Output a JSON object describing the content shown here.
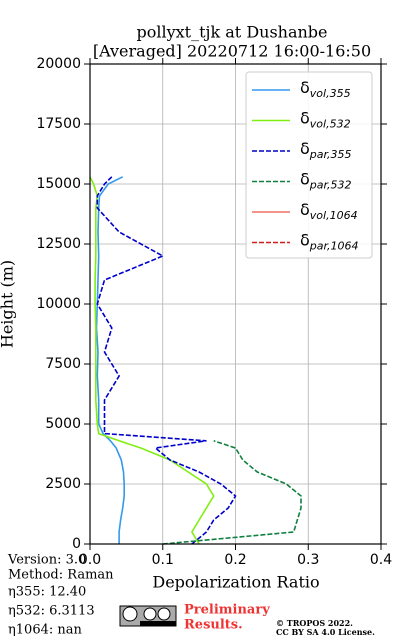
{
  "chart_data": {
    "type": "line",
    "title": "pollyxt_tjk at Dushanbe",
    "subtitle": "[Averaged] 20220712 16:00-16:50",
    "x_label": "Depolarization Ratio",
    "y_label": "Height (m)",
    "xlim": [
      0,
      0.4
    ],
    "xticks": [
      {
        "value": 0,
        "label": "0.0"
      },
      0.1,
      0.2,
      0.3,
      {
        "value": 0.4,
        "label": "0.4"
      }
    ],
    "ylim": [
      0,
      20000
    ],
    "yticks": [
      0,
      2500,
      5000,
      7500,
      10000,
      12500,
      15000,
      17500,
      20000
    ],
    "grid": true,
    "legend": "upper right",
    "heights": [
      0,
      500,
      1000,
      1500,
      2000,
      2500,
      3000,
      3500,
      4000,
      4300,
      4600,
      5000,
      6000,
      7000,
      8000,
      9000,
      10000,
      11000,
      12000,
      13000,
      14000,
      14500,
      15000,
      15300
    ],
    "series": [
      {
        "name": "δ",
        "subscript": "vol,355",
        "color": "#3399ee",
        "dash": false,
        "values": [
          0.04,
          0.04,
          0.042,
          0.045,
          0.047,
          0.047,
          0.046,
          0.043,
          0.036,
          0.028,
          0.018,
          0.012,
          0.012,
          0.01,
          0.011,
          0.009,
          0.01,
          0.011,
          0.012,
          0.011,
          0.012,
          0.013,
          0.025,
          0.045
        ]
      },
      {
        "name": "δ",
        "subscript": "vol,532",
        "color": "#80ee10",
        "dash": false,
        "values": [
          0.15,
          0.14,
          0.15,
          0.16,
          0.17,
          0.16,
          0.135,
          0.11,
          0.07,
          0.04,
          0.012,
          0.01,
          0.008,
          0.008,
          0.008,
          0.008,
          0.007,
          0.007,
          0.008,
          0.008,
          0.008,
          0.01,
          0.005,
          0
        ]
      },
      {
        "name": "δ",
        "subscript": "par,355",
        "color": "#0000cc",
        "dash": true,
        "values": [
          0.14,
          0.16,
          0.17,
          0.19,
          0.2,
          0.18,
          0.15,
          0.11,
          0.09,
          0.16,
          0.02,
          0.02,
          0.02,
          0.04,
          0.02,
          0.03,
          0.01,
          0.02,
          0.1,
          0.04,
          0.01,
          0.01,
          0.02,
          0.03
        ]
      },
      {
        "name": "δ",
        "subscript": "par,532",
        "color": "#108040",
        "dash": true,
        "values": [
          0.1,
          0.28,
          0.285,
          0.29,
          0.29,
          0.27,
          0.23,
          0.21,
          0.2,
          0.17,
          null,
          null,
          null,
          null,
          null,
          null,
          null,
          null,
          null,
          null,
          null,
          null,
          null,
          null
        ]
      },
      {
        "name": "δ",
        "subscript": "vol,1064",
        "color": "#f07060",
        "dash": false,
        "values": [
          null,
          null,
          null,
          null,
          null,
          null,
          null,
          null,
          null,
          null,
          null,
          null,
          null,
          null,
          null,
          null,
          null,
          null,
          null,
          null,
          null,
          null,
          null,
          null
        ]
      },
      {
        "name": "δ",
        "subscript": "par,1064",
        "color": "#d02020",
        "dash": true,
        "values": [
          null,
          null,
          null,
          null,
          null,
          null,
          null,
          null,
          null,
          null,
          null,
          null,
          null,
          null,
          null,
          null,
          null,
          null,
          null,
          null,
          null,
          null,
          null,
          null
        ]
      }
    ],
    "annotations": [
      "Version: 3.0",
      "Method: Raman",
      "η355:  12.40",
      "η532: 6.3113",
      "η1064:    nan"
    ],
    "preliminary": [
      "Preliminary",
      "Results."
    ],
    "copyright": [
      "© TROPOS 2022.",
      "CC BY SA 4.0 License."
    ]
  }
}
